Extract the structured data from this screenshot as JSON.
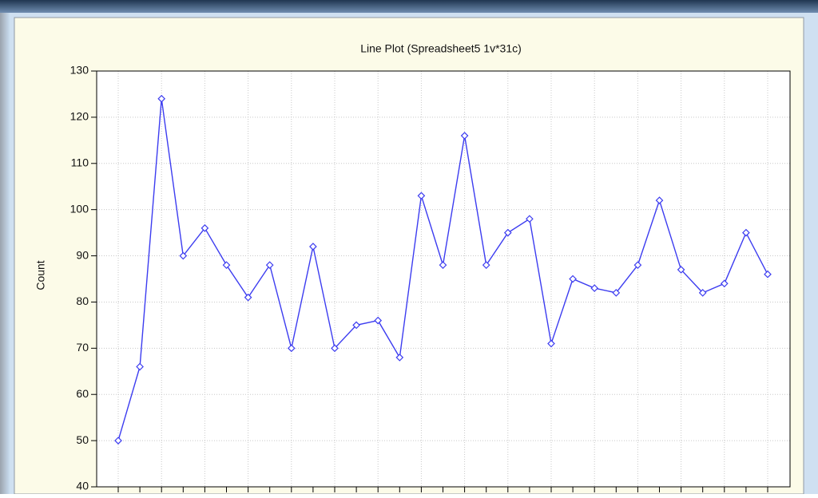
{
  "chart_data": {
    "type": "line",
    "title": "Line Plot (Spreadsheet5 1v*31c)",
    "y_label": "Count",
    "categories": [
      null,
      null,
      null,
      null,
      null,
      null,
      null,
      null,
      null,
      null,
      null,
      null,
      null,
      null,
      null,
      null,
      null,
      null,
      null,
      null,
      null,
      null,
      null,
      null,
      null,
      null,
      null,
      null,
      null,
      null,
      null
    ],
    "series": [
      {
        "name": "Count",
        "color": "#3c3cf0",
        "values": [
          50,
          66,
          124,
          90,
          96,
          88,
          81,
          88,
          70,
          92,
          70,
          75,
          76,
          68,
          103,
          88,
          116,
          88,
          95,
          98,
          71,
          85,
          83,
          82,
          88,
          102,
          87,
          82,
          84,
          95,
          86
        ]
      }
    ],
    "ylim": [
      40,
      130
    ],
    "yticks": [
      40,
      50,
      60,
      70,
      80,
      90,
      100,
      110,
      120,
      130
    ],
    "grid": true
  }
}
